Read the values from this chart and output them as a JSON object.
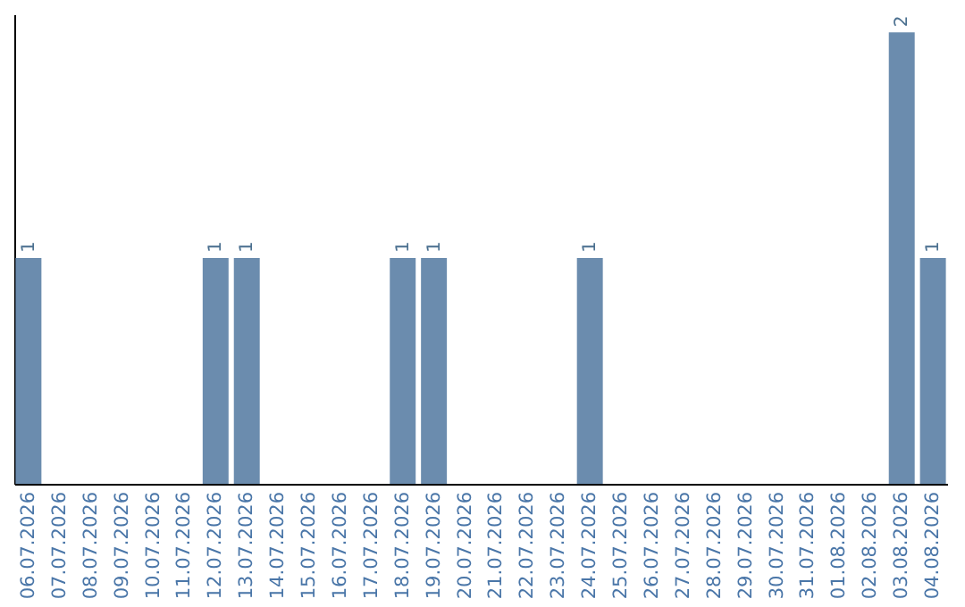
{
  "chart_data": {
    "type": "bar",
    "categories": [
      "06.07.2026",
      "07.07.2026",
      "08.07.2026",
      "09.07.2026",
      "10.07.2026",
      "11.07.2026",
      "12.07.2026",
      "13.07.2026",
      "14.07.2026",
      "15.07.2026",
      "16.07.2026",
      "17.07.2026",
      "18.07.2026",
      "19.07.2026",
      "20.07.2026",
      "21.07.2026",
      "22.07.2026",
      "23.07.2026",
      "24.07.2026",
      "25.07.2026",
      "26.07.2026",
      "27.07.2026",
      "28.07.2026",
      "29.07.2026",
      "30.07.2026",
      "31.07.2026",
      "01.08.2026",
      "02.08.2026",
      "03.08.2026",
      "04.08.2026"
    ],
    "values": [
      1,
      0,
      0,
      0,
      0,
      0,
      1,
      1,
      0,
      0,
      0,
      0,
      1,
      1,
      0,
      0,
      0,
      0,
      1,
      0,
      0,
      0,
      0,
      0,
      0,
      0,
      0,
      0,
      2,
      1
    ],
    "value_labels": [
      "1",
      null,
      null,
      null,
      null,
      null,
      "1",
      "1",
      null,
      null,
      null,
      null,
      "1",
      "1",
      null,
      null,
      null,
      null,
      "1",
      null,
      null,
      null,
      null,
      null,
      null,
      null,
      null,
      null,
      "2",
      "1"
    ],
    "color": "#6b8cae",
    "ylim": [
      0,
      2.08
    ],
    "tick_labels": "x"
  }
}
